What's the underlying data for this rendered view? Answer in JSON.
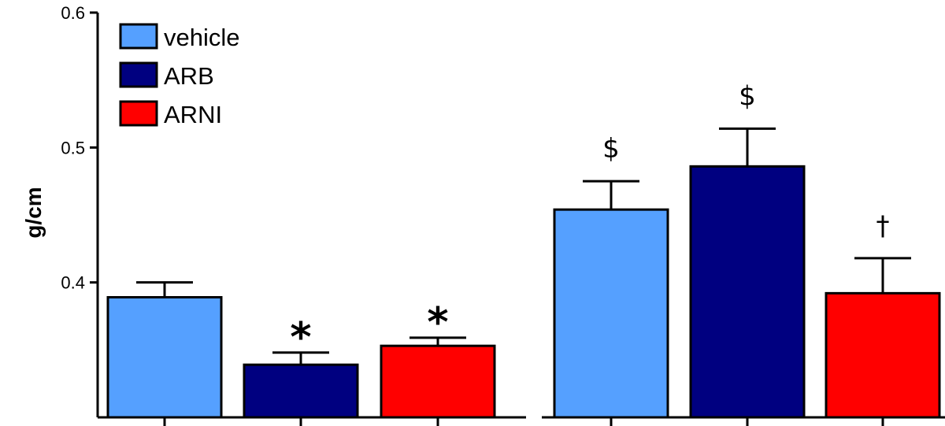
{
  "chart_data": {
    "type": "bar",
    "title": "",
    "xlabel": "",
    "ylabel": "g/cm",
    "ylim": [
      0.3,
      0.6
    ],
    "yticks": [
      "0.6",
      "0.5",
      "0.4"
    ],
    "legend_position": "top-left",
    "grid": false,
    "series": [
      {
        "name": "vehicle",
        "color": "#55a0ff",
        "values": [
          0.389,
          0.454
        ],
        "errors": [
          0.011,
          0.021
        ],
        "annotations": [
          "",
          "$"
        ]
      },
      {
        "name": "ARB",
        "color": "#000080",
        "values": [
          0.339,
          0.486
        ],
        "errors": [
          0.009,
          0.028
        ],
        "annotations": [
          "*",
          "$"
        ]
      },
      {
        "name": "ARNI",
        "color": "#ff0000",
        "values": [
          0.353,
          0.392
        ],
        "errors": [
          0.006,
          0.026
        ],
        "annotations": [
          "*",
          "†"
        ]
      }
    ],
    "groups": [
      "",
      ""
    ]
  }
}
